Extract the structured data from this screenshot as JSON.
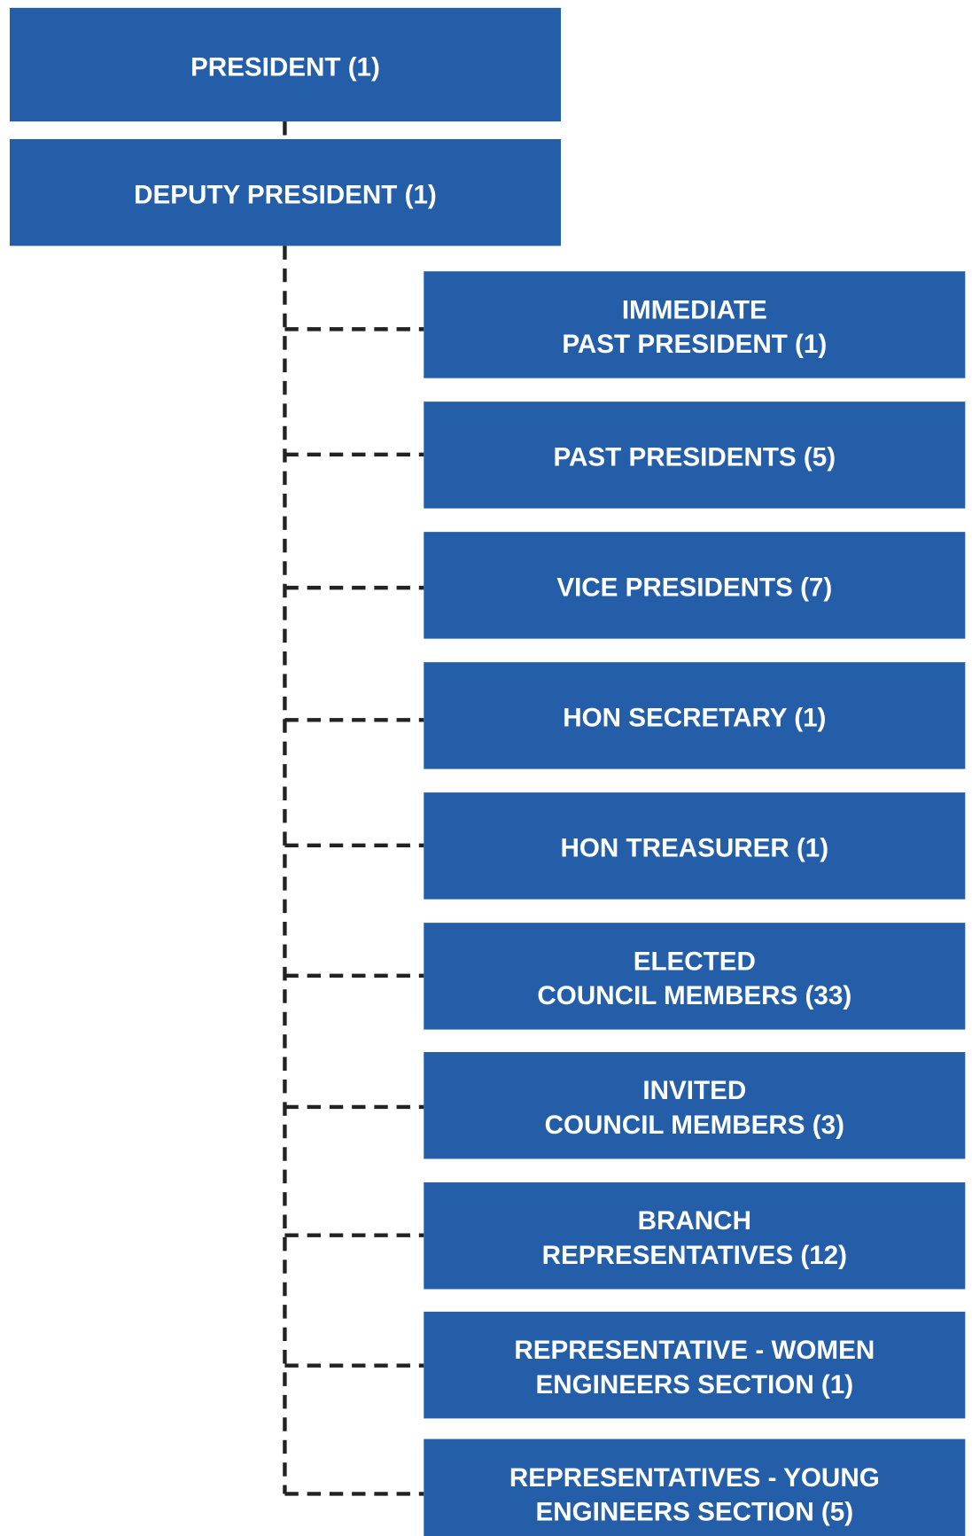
{
  "nodes": [
    {
      "label": [
        "PRESIDENT (1)"
      ]
    },
    {
      "label": [
        "DEPUTY PRESIDENT (1)"
      ]
    },
    {
      "label": [
        "IMMEDIATE",
        "PAST PRESIDENT (1)"
      ]
    },
    {
      "label": [
        "PAST PRESIDENTS (5)"
      ]
    },
    {
      "label": [
        "VICE PRESIDENTS (7)"
      ]
    },
    {
      "label": [
        "HON SECRETARY (1)"
      ]
    },
    {
      "label": [
        "HON TREASURER (1)"
      ]
    },
    {
      "label": [
        "ELECTED",
        "COUNCIL MEMBERS (33)"
      ]
    },
    {
      "label": [
        "INVITED",
        "COUNCIL MEMBERS (3)"
      ]
    },
    {
      "label": [
        "BRANCH",
        "REPRESENTATIVES (12)"
      ]
    },
    {
      "label": [
        "REPRESENTATIVE - WOMEN",
        "ENGINEERS SECTION (1)"
      ]
    },
    {
      "label": [
        "REPRESENTATIVES - YOUNG",
        "ENGINEERS SECTION (5)"
      ]
    }
  ]
}
